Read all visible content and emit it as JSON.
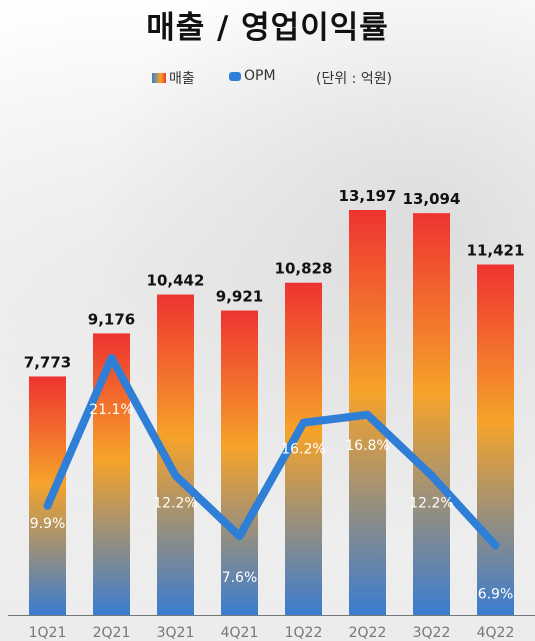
{
  "title": "매출 / 영업이익률",
  "legend": {
    "bar_label": "매출",
    "line_label": "OPM",
    "unit": "(단위 : 억원)"
  },
  "colors": {
    "bar_top": "#ee3330",
    "bar_mid": "#f6a32a",
    "bar_bottom": "#3a7cd0",
    "line": "#2f7fd6"
  },
  "chart_data": {
    "type": "bar",
    "categories": [
      "1Q21",
      "2Q21",
      "3Q21",
      "4Q21",
      "1Q22",
      "2Q22",
      "3Q22",
      "4Q22"
    ],
    "series": [
      {
        "name": "매출",
        "type": "bar",
        "values": [
          7773,
          9176,
          10442,
          9921,
          10828,
          13197,
          13094,
          11421
        ],
        "labels": [
          "7,773",
          "9,176",
          "10,442",
          "9,921",
          "10,828",
          "13,197",
          "13,094",
          "11,421"
        ]
      },
      {
        "name": "OPM",
        "type": "line",
        "values": [
          9.9,
          21.1,
          12.2,
          7.6,
          16.2,
          16.8,
          12.2,
          6.9
        ],
        "labels": [
          "9.9%",
          "21.1%",
          "12.2%",
          "7.6%",
          "16.2%",
          "16.8%",
          "12.2%",
          "6.9%"
        ]
      }
    ]
  }
}
